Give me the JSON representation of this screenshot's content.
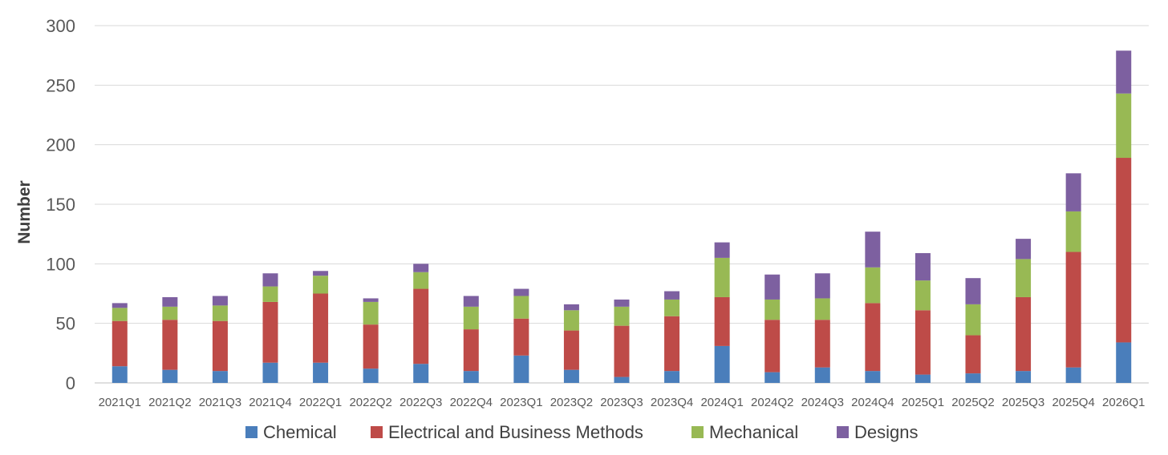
{
  "chart_data": {
    "type": "bar",
    "stacked": true,
    "title": "",
    "xlabel": "",
    "ylabel": "Number",
    "ylim": [
      0,
      300
    ],
    "yticks": [
      "0",
      "50",
      "100",
      "150",
      "200",
      "250",
      "300"
    ],
    "grid": true,
    "legend_position": "bottom",
    "categories": [
      "2021Q1",
      "2021Q2",
      "2021Q3",
      "2021Q4",
      "2022Q1",
      "2022Q2",
      "2022Q3",
      "2022Q4",
      "2023Q1",
      "2023Q2",
      "2023Q3",
      "2023Q4",
      "2024Q1",
      "2024Q2",
      "2024Q3",
      "2024Q4",
      "2025Q1",
      "2025Q2",
      "2025Q3",
      "2025Q4",
      "2026Q1"
    ],
    "series": [
      {
        "name": "Chemical",
        "color": "#4a7ebb",
        "values": [
          14,
          11,
          10,
          17,
          17,
          12,
          16,
          10,
          23,
          11,
          5,
          10,
          31,
          9,
          13,
          10,
          7,
          8,
          10,
          13,
          34
        ]
      },
      {
        "name": "Electrical and Business Methods",
        "color": "#be4b48",
        "values": [
          38,
          42,
          42,
          51,
          58,
          37,
          63,
          35,
          31,
          33,
          43,
          46,
          41,
          44,
          40,
          57,
          54,
          32,
          62,
          97,
          155
        ]
      },
      {
        "name": "Mechanical",
        "color": "#98b954",
        "values": [
          11,
          11,
          13,
          13,
          15,
          19,
          14,
          19,
          19,
          17,
          16,
          14,
          33,
          17,
          18,
          30,
          25,
          26,
          32,
          34,
          54
        ]
      },
      {
        "name": "Designs",
        "color": "#7d60a0",
        "values": [
          4,
          8,
          8,
          11,
          4,
          3,
          7,
          9,
          6,
          5,
          6,
          7,
          13,
          21,
          21,
          30,
          23,
          22,
          17,
          32,
          36
        ]
      }
    ]
  }
}
